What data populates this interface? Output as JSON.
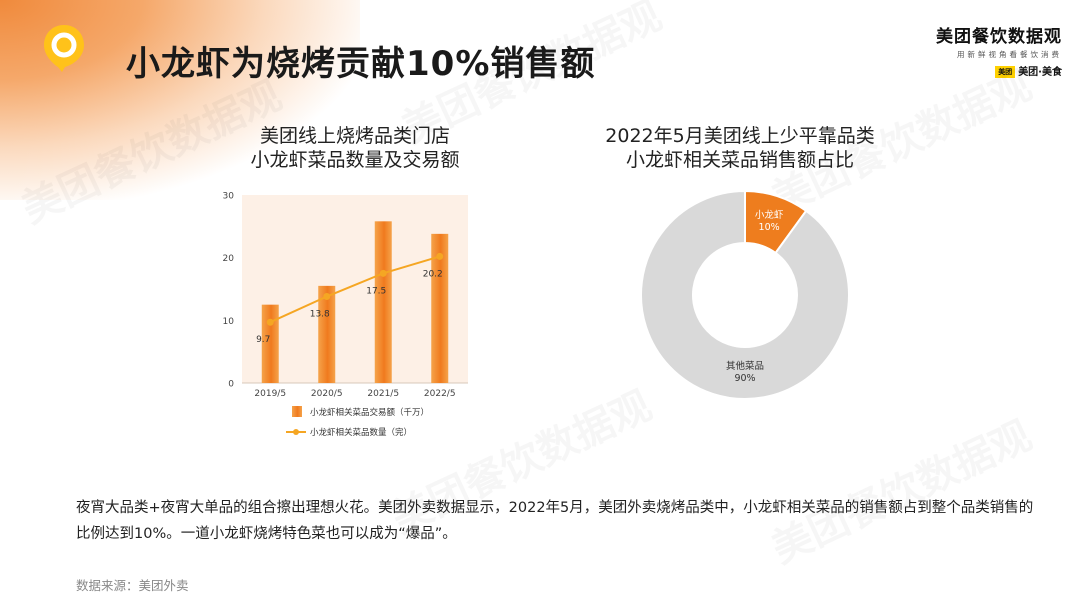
{
  "header": {
    "title": "小龙虾为烧烤贡献10%销售额",
    "brand_name": "美团餐饮数据观",
    "brand_tagline": "用新鲜视角看餐饮消费",
    "brand_box": "美团",
    "brand_sub": "美团·美食"
  },
  "watermark": "美团餐饮数据观",
  "left_chart_title": {
    "line1": "美团线上烧烤品类门店",
    "line2": "小龙虾菜品数量及交易额"
  },
  "right_chart_title": {
    "line1": "2022年5月美团线上少平靠品类",
    "line2": "小龙虾相关菜品销售额占比"
  },
  "body_text": "夜宵大品类+夜宵大单品的组合擦出理想火花。美团外卖数据显示，2022年5月，美团外卖烧烤品类中，小龙虾相关菜品的销售额占到整个品类销售的比例达到10%。一道小龙虾烧烤特色菜也可以成为“爆品”。",
  "source": "数据来源：美团外卖",
  "colors": {
    "bar": "#f07a1e",
    "line": "#f5a623",
    "pie_highlight": "#ee7d1e",
    "pie_other": "#d9d9d9",
    "plot_bg": "#fdf0e6"
  },
  "chart_data": [
    {
      "type": "bar",
      "categories": [
        "2019/5",
        "2020/5",
        "2021/5",
        "2022/5"
      ],
      "ylim": [
        0,
        30
      ],
      "yticks": [
        "0",
        "10",
        "20",
        "30"
      ],
      "series": [
        {
          "name": "小龙虾相关菜品交易额（千万）",
          "kind": "bar",
          "values": [
            12.5,
            15.5,
            25.8,
            23.8
          ]
        },
        {
          "name": "小龙虾相关菜品数量（完）",
          "kind": "line",
          "values": [
            9.7,
            13.8,
            17.5,
            20.2
          ],
          "labels": [
            "9.7",
            "13.8",
            "17.5",
            "20.2"
          ]
        }
      ],
      "legend_position": "bottom"
    },
    {
      "type": "pie",
      "donut": true,
      "slices": [
        {
          "label": "小龙虾",
          "value": 10,
          "value_label": "10%"
        },
        {
          "label": "其他菜品",
          "value": 90,
          "value_label": "90%"
        }
      ]
    }
  ]
}
